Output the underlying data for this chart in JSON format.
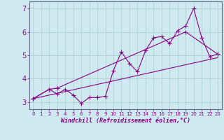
{
  "xlabel": "Windchill (Refroidissement éolien,°C)",
  "ylabel": "",
  "background_color": "#ceeaf0",
  "grid_color": "#aacccc",
  "line_color": "#880088",
  "xlim": [
    -0.5,
    23.5
  ],
  "ylim": [
    2.7,
    7.3
  ],
  "yticks": [
    3,
    4,
    5,
    6,
    7
  ],
  "xticks": [
    0,
    1,
    2,
    3,
    4,
    5,
    6,
    7,
    8,
    9,
    10,
    11,
    12,
    13,
    14,
    15,
    16,
    17,
    18,
    19,
    20,
    21,
    22,
    23
  ],
  "line1_x": [
    0,
    2,
    3,
    19,
    23
  ],
  "line1_y": [
    3.15,
    3.55,
    3.6,
    6.0,
    5.05
  ],
  "line2_x": [
    0,
    2,
    3,
    4,
    5,
    6,
    7,
    8,
    9,
    10,
    11,
    12,
    13,
    14,
    15,
    16,
    17,
    18,
    19,
    20,
    21,
    22,
    23
  ],
  "line2_y": [
    3.15,
    3.55,
    3.35,
    3.55,
    3.3,
    2.95,
    3.2,
    3.2,
    3.25,
    4.35,
    5.15,
    4.65,
    4.3,
    5.2,
    5.75,
    5.8,
    5.5,
    6.05,
    6.25,
    7.0,
    5.75,
    4.95,
    5.05
  ],
  "line3_x": [
    0,
    23
  ],
  "line3_y": [
    3.15,
    4.9
  ],
  "marker_size": 4,
  "line_width": 0.8
}
